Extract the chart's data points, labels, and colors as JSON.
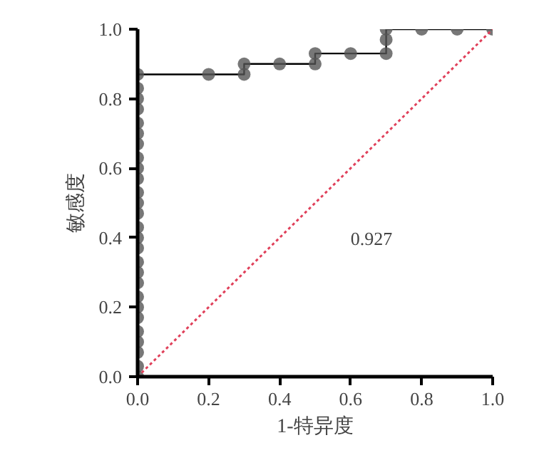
{
  "chart_data": {
    "type": "line",
    "xlabel": "1-特异度",
    "ylabel": "敏感度",
    "xlim": [
      0,
      1
    ],
    "ylim": [
      0,
      1
    ],
    "xticks": [
      {
        "value": 0,
        "label": "0.0"
      },
      0.2,
      0.4,
      0.6,
      0.8,
      {
        "value": 1,
        "label": "1.0"
      }
    ],
    "yticks": [
      {
        "value": 0,
        "label": "0.0"
      },
      0.2,
      0.4,
      0.6,
      0.8,
      {
        "value": 1,
        "label": "1.0"
      }
    ],
    "grid": false,
    "annotations": [
      "0.927"
    ],
    "series": [
      {
        "color": "#555555",
        "marker": "circle",
        "line_style": "solid",
        "x": [
          0,
          0,
          0,
          0,
          0,
          0,
          0,
          0,
          0,
          0,
          0,
          0,
          0,
          0,
          0,
          0,
          0,
          0,
          0,
          0,
          0,
          0,
          0,
          0,
          0,
          0,
          0,
          0.2,
          0.3,
          0.3,
          0.4,
          0.5,
          0.5,
          0.6,
          0.7,
          0.7,
          0.7,
          0.8,
          0.9,
          1.0
        ],
        "values": [
          0,
          0.03,
          0.07,
          0.1,
          0.13,
          0.17,
          0.2,
          0.23,
          0.27,
          0.3,
          0.33,
          0.37,
          0.4,
          0.43,
          0.47,
          0.5,
          0.53,
          0.57,
          0.6,
          0.63,
          0.67,
          0.7,
          0.73,
          0.77,
          0.8,
          0.83,
          0.87,
          0.87,
          0.87,
          0.9,
          0.9,
          0.9,
          0.93,
          0.93,
          0.93,
          0.97,
          1.0,
          1.0,
          1.0,
          1.0
        ]
      },
      {
        "type": "line",
        "color": "#e0405a",
        "marker": "none",
        "line_style": "dotted",
        "x": [
          0,
          1
        ],
        "values": [
          0,
          1
        ]
      }
    ]
  }
}
